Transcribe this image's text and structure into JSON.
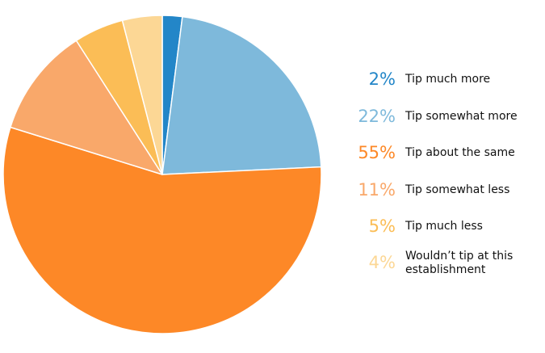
{
  "chart_data": {
    "type": "pie",
    "start_angle_deg": 0,
    "direction": "clockwise",
    "slices": [
      {
        "label": "Tip much more",
        "percent_label": "2%",
        "value": 2,
        "color": "#2386c8"
      },
      {
        "label": "Tip somewhat more",
        "percent_label": "22%",
        "value": 22,
        "color": "#7eb9db"
      },
      {
        "label": "Tip about the same",
        "percent_label": "55%",
        "value": 55,
        "color": "#fd8827"
      },
      {
        "label": "Tip somewhat less",
        "percent_label": "11%",
        "value": 11,
        "color": "#f9a86a"
      },
      {
        "label": "Tip much less",
        "percent_label": "5%",
        "value": 5,
        "color": "#fbbd56"
      },
      {
        "label": "Wouldn’t tip at this establishment",
        "percent_label": "4%",
        "value": 4,
        "color": "#fcd795"
      }
    ],
    "legend_position": "right"
  }
}
